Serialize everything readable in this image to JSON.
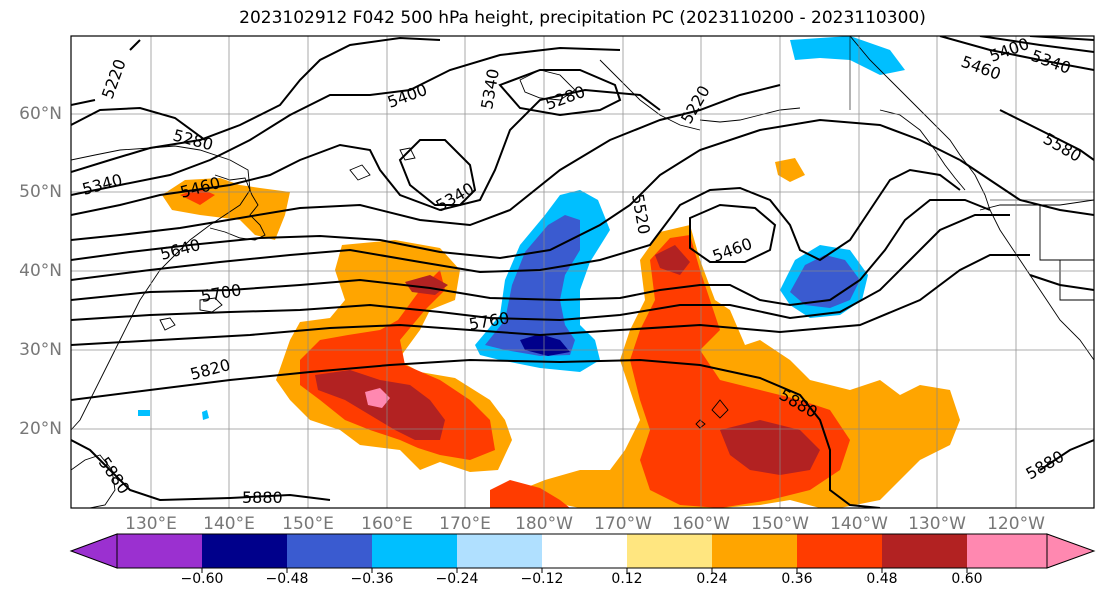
{
  "title": "2023102912 F042 500 hPa height, precipitation PC (2023110200 - 2023110300)",
  "lat_labels": [
    "60°N",
    "50°N",
    "40°N",
    "30°N",
    "20°N"
  ],
  "lon_labels": [
    "130°E",
    "140°E",
    "150°E",
    "160°E",
    "170°E",
    "180°W",
    "170°W",
    "160°W",
    "150°W",
    "140°W",
    "130°W",
    "120°W"
  ],
  "colorbar": {
    "tick_labels": [
      "−0.60",
      "−0.48",
      "−0.36",
      "−0.24",
      "−0.12",
      "0.12",
      "0.24",
      "0.36",
      "0.48",
      "0.60"
    ],
    "colors": [
      "#9b30d0",
      "#00008b",
      "#3a5bd0",
      "#00bfff",
      "#b0e0ff",
      "#ffffff",
      "#ffe680",
      "#ffa500",
      "#ff3c00",
      "#b22222",
      "#ff88b0"
    ]
  },
  "contour_labels": [
    "5220",
    "5280",
    "5340",
    "5400",
    "5460",
    "5280",
    "5340",
    "5220",
    "5340",
    "5460",
    "5400",
    "5340",
    "5580",
    "5520",
    "5460",
    "5640",
    "5700",
    "5760",
    "5820",
    "5880",
    "5880",
    "5880",
    "5880"
  ]
}
